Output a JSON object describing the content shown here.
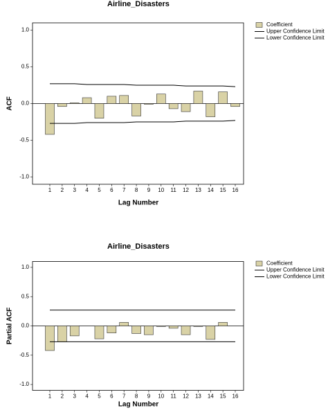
{
  "chart_data": [
    {
      "type": "bar",
      "title": "Airline_Disasters",
      "xlabel": "Lag Number",
      "ylabel": "ACF",
      "categories": [
        "1",
        "2",
        "3",
        "4",
        "5",
        "6",
        "7",
        "8",
        "9",
        "10",
        "11",
        "12",
        "13",
        "14",
        "15",
        "16"
      ],
      "series": [
        {
          "name": "Coefficient",
          "mark": "bar",
          "color": "#d9d2a6",
          "values": [
            -0.42,
            -0.04,
            0.01,
            0.08,
            -0.2,
            0.1,
            0.11,
            -0.17,
            -0.01,
            0.13,
            -0.07,
            -0.11,
            0.17,
            -0.18,
            0.16,
            -0.04
          ]
        },
        {
          "name": "Upper Confidence Limit",
          "mark": "line",
          "color": "#000000",
          "values": [
            0.27,
            0.27,
            0.27,
            0.26,
            0.26,
            0.26,
            0.26,
            0.25,
            0.25,
            0.25,
            0.25,
            0.24,
            0.24,
            0.24,
            0.24,
            0.23
          ]
        },
        {
          "name": "Lower Confidence Limit",
          "mark": "line",
          "color": "#000000",
          "values": [
            -0.27,
            -0.27,
            -0.27,
            -0.26,
            -0.26,
            -0.26,
            -0.26,
            -0.25,
            -0.25,
            -0.25,
            -0.25,
            -0.24,
            -0.24,
            -0.24,
            -0.24,
            -0.23
          ]
        }
      ],
      "ylim": [
        -1.1,
        1.1
      ],
      "yticks": [
        {
          "value": 1.0,
          "label": "1.0"
        },
        0.5,
        {
          "value": 0.0,
          "label": "0.0"
        },
        -0.5,
        {
          "value": -1.0,
          "label": "-1.0"
        }
      ]
    },
    {
      "type": "bar",
      "title": "Airline_Disasters",
      "xlabel": "Lag Number",
      "ylabel": "Partial ACF",
      "categories": [
        "1",
        "2",
        "3",
        "4",
        "5",
        "6",
        "7",
        "8",
        "9",
        "10",
        "11",
        "12",
        "13",
        "14",
        "15",
        "16"
      ],
      "series": [
        {
          "name": "Coefficient",
          "mark": "bar",
          "color": "#d9d2a6",
          "values": [
            -0.42,
            -0.27,
            -0.17,
            0.0,
            -0.22,
            -0.12,
            0.06,
            -0.13,
            -0.15,
            -0.01,
            -0.04,
            -0.15,
            -0.01,
            -0.23,
            0.06,
            0.0
          ]
        },
        {
          "name": "Upper Confidence Limit",
          "mark": "line",
          "color": "#000000",
          "values": [
            0.27,
            0.27,
            0.27,
            0.27,
            0.27,
            0.27,
            0.27,
            0.27,
            0.27,
            0.27,
            0.27,
            0.27,
            0.27,
            0.27,
            0.27,
            0.27
          ]
        },
        {
          "name": "Lower Confidence Limit",
          "mark": "line",
          "color": "#000000",
          "values": [
            -0.27,
            -0.27,
            -0.27,
            -0.27,
            -0.27,
            -0.27,
            -0.27,
            -0.27,
            -0.27,
            -0.27,
            -0.27,
            -0.27,
            -0.27,
            -0.27,
            -0.27,
            -0.27
          ]
        }
      ],
      "ylim": [
        -1.1,
        1.1
      ],
      "yticks": [
        {
          "value": 1.0,
          "label": "1.0"
        },
        0.5,
        {
          "value": 0.0,
          "label": "0.0"
        },
        -0.5,
        {
          "value": -1.0,
          "label": "-1.0"
        }
      ]
    }
  ]
}
